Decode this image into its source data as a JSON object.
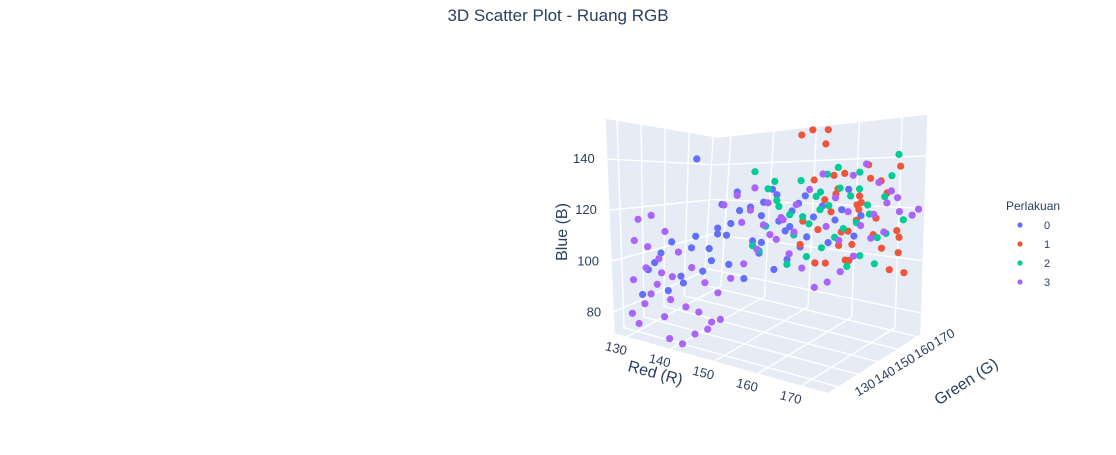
{
  "chart_data": {
    "type": "scatter",
    "projection": "3d",
    "title": "3D Scatter Plot - Ruang RGB",
    "axes": {
      "x": {
        "label": "Red (R)",
        "ticks": [
          130,
          140,
          150,
          160,
          170
        ],
        "range": [
          127,
          176
        ]
      },
      "y": {
        "label": "Green (G)",
        "ticks": [
          130,
          140,
          150,
          160,
          170
        ],
        "range": [
          125,
          172
        ]
      },
      "z": {
        "label": "Blue (B)",
        "ticks": [
          80,
          100,
          120,
          140
        ],
        "range": [
          72,
          156
        ]
      }
    },
    "grid": true,
    "legend": {
      "title": "Perlakuan",
      "placement": "right"
    },
    "series": [
      {
        "name": "0",
        "color": "#636efa",
        "points": [
          [
            143,
            133,
            145
          ],
          [
            147,
            138,
            115
          ],
          [
            148,
            141,
            132
          ],
          [
            150,
            144,
            112
          ],
          [
            152,
            145,
            128
          ],
          [
            154,
            148,
            120
          ],
          [
            156,
            150,
            124
          ],
          [
            158,
            152,
            130
          ],
          [
            146,
            136,
            118
          ],
          [
            149,
            140,
            125
          ],
          [
            151,
            146,
            122
          ],
          [
            153,
            147,
            133
          ],
          [
            155,
            149,
            116
          ],
          [
            157,
            151,
            127
          ],
          [
            159,
            154,
            121
          ],
          [
            145,
            134,
            110
          ],
          [
            148,
            138,
            120
          ],
          [
            150,
            143,
            126
          ],
          [
            152,
            144,
            112
          ],
          [
            154,
            147,
            131
          ],
          [
            156,
            149,
            118
          ],
          [
            133,
            130,
            98
          ],
          [
            135,
            132,
            105
          ],
          [
            137,
            133,
            110
          ],
          [
            134,
            131,
            101
          ],
          [
            138,
            135,
            96
          ],
          [
            140,
            136,
            108
          ],
          [
            136,
            133,
            90
          ],
          [
            139,
            134,
            94
          ],
          [
            141,
            136,
            113
          ],
          [
            132,
            129,
            88
          ],
          [
            144,
            137,
            104
          ],
          [
            142,
            137,
            99
          ],
          [
            160,
            156,
            125
          ],
          [
            162,
            158,
            119
          ],
          [
            164,
            160,
            131
          ],
          [
            161,
            157,
            110
          ],
          [
            163,
            159,
            123
          ],
          [
            158,
            153,
            113
          ],
          [
            155,
            150,
            104
          ],
          [
            147,
            139,
            103
          ],
          [
            151,
            145,
            107
          ],
          [
            153,
            148,
            100
          ],
          [
            149,
            142,
            97
          ],
          [
            157,
            152,
            109
          ],
          [
            159,
            155,
            102
          ],
          [
            166,
            162,
            120
          ],
          [
            165,
            161,
            112
          ],
          [
            146,
            138,
            127
          ],
          [
            144,
            140,
            114
          ]
        ]
      },
      {
        "name": "1",
        "color": "#ef553b",
        "points": [
          [
            158,
            150,
            155
          ],
          [
            160,
            151,
            157
          ],
          [
            162,
            153,
            151
          ],
          [
            161,
            156,
            156
          ],
          [
            164,
            158,
            138
          ],
          [
            163,
            157,
            132
          ],
          [
            166,
            160,
            125
          ],
          [
            165,
            162,
            118
          ],
          [
            167,
            163,
            140
          ],
          [
            168,
            164,
            112
          ],
          [
            170,
            166,
            128
          ],
          [
            169,
            165,
            133
          ],
          [
            172,
            168,
            104
          ],
          [
            171,
            166,
            98
          ],
          [
            173,
            169,
            96
          ],
          [
            162,
            160,
            108
          ],
          [
            160,
            158,
            101
          ],
          [
            164,
            161,
            102
          ],
          [
            166,
            158,
            110
          ],
          [
            165,
            163,
            122
          ],
          [
            167,
            160,
            126
          ],
          [
            168,
            162,
            135
          ],
          [
            163,
            159,
            114
          ],
          [
            161,
            155,
            128
          ],
          [
            159,
            154,
            136
          ],
          [
            157,
            152,
            110
          ],
          [
            162,
            156,
            123
          ],
          [
            164,
            154,
            131
          ],
          [
            166,
            156,
            116
          ],
          [
            169,
            163,
            119
          ],
          [
            170,
            164,
            107
          ],
          [
            171,
            170,
            137
          ],
          [
            172,
            167,
            113
          ],
          [
            160,
            153,
            103
          ],
          [
            158,
            151,
            120
          ],
          [
            163,
            155,
            138
          ],
          [
            165,
            157,
            104
          ],
          [
            167,
            159,
            129
          ],
          [
            161,
            152,
            117
          ],
          [
            173,
            166,
            111
          ]
        ]
      },
      {
        "name": "2",
        "color": "#00cc96",
        "points": [
          [
            150,
            145,
            140
          ],
          [
            152,
            147,
            133
          ],
          [
            153,
            149,
            128
          ],
          [
            155,
            151,
            122
          ],
          [
            157,
            152,
            136
          ],
          [
            158,
            154,
            118
          ],
          [
            160,
            155,
            131
          ],
          [
            161,
            157,
            125
          ],
          [
            162,
            159,
            140
          ],
          [
            163,
            160,
            115
          ],
          [
            164,
            161,
            128
          ],
          [
            165,
            163,
            137
          ],
          [
            167,
            164,
            120
          ],
          [
            168,
            166,
            110
          ],
          [
            170,
            168,
            134
          ],
          [
            169,
            167,
            126
          ],
          [
            166,
            162,
            104
          ],
          [
            164,
            160,
            100
          ],
          [
            162,
            158,
            112
          ],
          [
            160,
            156,
            108
          ],
          [
            158,
            153,
            105
          ],
          [
            156,
            151,
            114
          ],
          [
            154,
            148,
            126
          ],
          [
            152,
            146,
            118
          ],
          [
            151,
            145,
            108
          ],
          [
            155,
            150,
            102
          ],
          [
            157,
            153,
            121
          ],
          [
            159,
            155,
            129
          ],
          [
            161,
            156,
            138
          ],
          [
            163,
            158,
            132
          ],
          [
            165,
            162,
            117
          ],
          [
            167,
            163,
            124
          ],
          [
            171,
            169,
            142
          ],
          [
            172,
            170,
            116
          ],
          [
            168,
            165,
            100
          ],
          [
            170,
            166,
            112
          ],
          [
            150,
            144,
            110
          ],
          [
            153,
            148,
            136
          ],
          [
            159,
            157,
            123
          ],
          [
            166,
            161,
            131
          ]
        ]
      },
      {
        "name": "3",
        "color": "#ab63fa",
        "points": [
          [
            130,
            128,
            80
          ],
          [
            131,
            129,
            76
          ],
          [
            132,
            130,
            84
          ],
          [
            133,
            131,
            88
          ],
          [
            134,
            132,
            92
          ],
          [
            135,
            133,
            79
          ],
          [
            136,
            134,
            86
          ],
          [
            131,
            127,
            94
          ],
          [
            133,
            129,
            99
          ],
          [
            135,
            131,
            103
          ],
          [
            137,
            133,
            96
          ],
          [
            139,
            135,
            84
          ],
          [
            141,
            137,
            82
          ],
          [
            143,
            139,
            78
          ],
          [
            132,
            128,
            118
          ],
          [
            134,
            130,
            120
          ],
          [
            136,
            132,
            114
          ],
          [
            138,
            134,
            106
          ],
          [
            140,
            136,
            100
          ],
          [
            142,
            138,
            94
          ],
          [
            144,
            140,
            90
          ],
          [
            146,
            142,
            96
          ],
          [
            148,
            144,
            102
          ],
          [
            150,
            146,
            108
          ],
          [
            152,
            148,
            114
          ],
          [
            154,
            150,
            120
          ],
          [
            156,
            152,
            126
          ],
          [
            158,
            154,
            132
          ],
          [
            160,
            156,
            138
          ],
          [
            162,
            158,
            128
          ],
          [
            164,
            160,
            122
          ],
          [
            166,
            162,
            116
          ],
          [
            168,
            164,
            120
          ],
          [
            170,
            166,
            124
          ],
          [
            172,
            168,
            120
          ],
          [
            174,
            170,
            118
          ],
          [
            175,
            171,
            120
          ],
          [
            169,
            167,
            112
          ],
          [
            167,
            165,
            110
          ],
          [
            165,
            161,
            104
          ],
          [
            163,
            159,
            98
          ],
          [
            161,
            157,
            94
          ],
          [
            159,
            155,
            92
          ],
          [
            157,
            153,
            100
          ],
          [
            155,
            151,
            106
          ],
          [
            153,
            149,
            112
          ],
          [
            151,
            147,
            118
          ],
          [
            149,
            145,
            124
          ],
          [
            147,
            143,
            130
          ],
          [
            145,
            141,
            126
          ],
          [
            160,
            158,
            116
          ],
          [
            162,
            160,
            110
          ],
          [
            164,
            162,
            136
          ],
          [
            166,
            164,
            140
          ],
          [
            168,
            166,
            132
          ],
          [
            170,
            168,
            128
          ],
          [
            171,
            169,
            125
          ],
          [
            157,
            149,
            116
          ],
          [
            155,
            147,
            122
          ],
          [
            153,
            145,
            128
          ],
          [
            151,
            143,
            134
          ],
          [
            149,
            141,
            120
          ],
          [
            137,
            131,
            72
          ],
          [
            139,
            133,
            70
          ],
          [
            141,
            135,
            74
          ],
          [
            143,
            137,
            76
          ],
          [
            145,
            139,
            80
          ],
          [
            132,
            126,
            110
          ],
          [
            134,
            128,
            108
          ],
          [
            136,
            130,
            98
          ]
        ]
      }
    ]
  }
}
